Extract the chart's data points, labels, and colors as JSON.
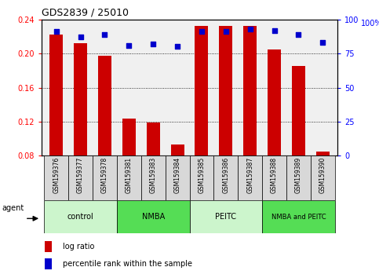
{
  "title": "GDS2839 / 25010",
  "samples": [
    "GSM159376",
    "GSM159377",
    "GSM159378",
    "GSM159381",
    "GSM159383",
    "GSM159384",
    "GSM159385",
    "GSM159386",
    "GSM159387",
    "GSM159388",
    "GSM159389",
    "GSM159390"
  ],
  "log_ratio": [
    0.222,
    0.212,
    0.197,
    0.124,
    0.119,
    0.093,
    0.232,
    0.232,
    0.232,
    0.205,
    0.185,
    0.085
  ],
  "percentile_rank": [
    91,
    87,
    89,
    81,
    82,
    80,
    91,
    91,
    93,
    92,
    89,
    83
  ],
  "groups": [
    {
      "label": "control",
      "start": 0,
      "end": 3,
      "color": "#ccf5cc"
    },
    {
      "label": "NMBA",
      "start": 3,
      "end": 6,
      "color": "#55dd55"
    },
    {
      "label": "PEITC",
      "start": 6,
      "end": 9,
      "color": "#ccf5cc"
    },
    {
      "label": "NMBA and PEITC",
      "start": 9,
      "end": 12,
      "color": "#55dd55"
    }
  ],
  "bar_color": "#cc0000",
  "dot_color": "#0000cc",
  "ylim_left": [
    0.08,
    0.24
  ],
  "ylim_right": [
    0,
    100
  ],
  "yticks_left": [
    0.08,
    0.12,
    0.16,
    0.2,
    0.24
  ],
  "yticks_right": [
    0,
    25,
    50,
    75,
    100
  ],
  "bar_width": 0.55,
  "plot_bg_color": "#f0f0f0",
  "agent_label": "agent",
  "legend_entries": [
    "log ratio",
    "percentile rank within the sample"
  ],
  "right_ylabel": "100%"
}
